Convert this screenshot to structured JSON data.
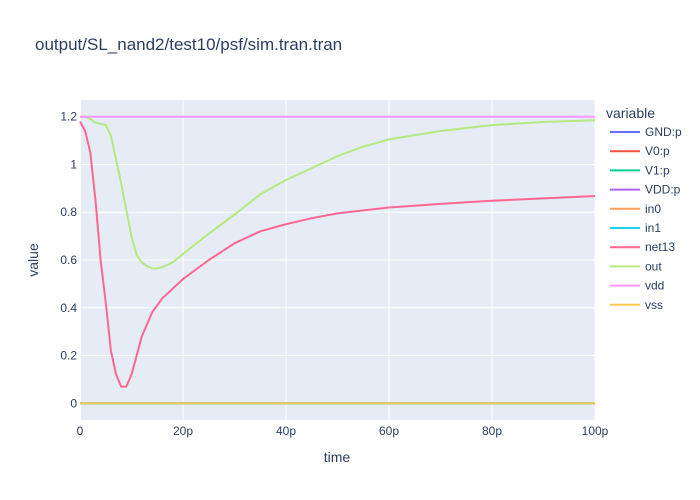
{
  "chart_data": {
    "type": "line",
    "title": "output/SL_nand2/test10/psf/sim.tran.tran",
    "xlabel": "time",
    "ylabel": "value",
    "xlim": [
      0,
      100
    ],
    "ylim": [
      -0.07,
      1.27
    ],
    "x_unit": "ps",
    "x_ticks": [
      0,
      20,
      40,
      60,
      80,
      100
    ],
    "x_tick_labels": [
      "0",
      "20p",
      "40p",
      "60p",
      "80p",
      "100p"
    ],
    "y_ticks": [
      0,
      0.2,
      0.4,
      0.6,
      0.8,
      1,
      1.2
    ],
    "y_tick_labels": [
      "0",
      "0.2",
      "0.4",
      "0.6",
      "0.8",
      "1",
      "1.2"
    ],
    "grid": true,
    "legend_title": "variable",
    "legend_position": "right",
    "background": "#e5ecf6",
    "series": [
      {
        "name": "GND:p",
        "color": "#636efa",
        "x": [
          0,
          100
        ],
        "values": [
          0,
          0
        ]
      },
      {
        "name": "V0:p",
        "color": "#ef553b",
        "x": [
          0,
          100
        ],
        "values": [
          0,
          0
        ]
      },
      {
        "name": "V1:p",
        "color": "#00cc96",
        "x": [
          0,
          100
        ],
        "values": [
          0,
          0
        ]
      },
      {
        "name": "VDD:p",
        "color": "#ab63fa",
        "x": [
          0,
          100
        ],
        "values": [
          0,
          0
        ]
      },
      {
        "name": "in0",
        "color": "#ffa15a",
        "x": [
          0,
          100
        ],
        "values": [
          0,
          0
        ]
      },
      {
        "name": "in1",
        "color": "#19d3f3",
        "x": [
          0,
          100
        ],
        "values": [
          0,
          0
        ]
      },
      {
        "name": "net13",
        "color": "#ff6692",
        "x": [
          0,
          1,
          2,
          3,
          4,
          5,
          6,
          7,
          8,
          9,
          10,
          12,
          14,
          16,
          18,
          20,
          25,
          30,
          35,
          40,
          45,
          50,
          60,
          70,
          80,
          90,
          100
        ],
        "values": [
          1.18,
          1.14,
          1.05,
          0.85,
          0.6,
          0.42,
          0.22,
          0.12,
          0.07,
          0.07,
          0.12,
          0.28,
          0.38,
          0.44,
          0.48,
          0.52,
          0.6,
          0.67,
          0.72,
          0.75,
          0.775,
          0.795,
          0.82,
          0.835,
          0.848,
          0.858,
          0.868
        ]
      },
      {
        "name": "out",
        "color": "#b6e880",
        "x": [
          0,
          1,
          2,
          3,
          4,
          5,
          6,
          7,
          8,
          9,
          10,
          11,
          12,
          13,
          14,
          15,
          16,
          18,
          20,
          25,
          30,
          35,
          40,
          45,
          50,
          55,
          60,
          70,
          80,
          90,
          100
        ],
        "values": [
          1.2,
          1.2,
          1.19,
          1.175,
          1.17,
          1.165,
          1.12,
          1.02,
          0.92,
          0.81,
          0.7,
          0.62,
          0.59,
          0.575,
          0.565,
          0.565,
          0.57,
          0.59,
          0.625,
          0.71,
          0.79,
          0.875,
          0.935,
          0.985,
          1.035,
          1.075,
          1.105,
          1.14,
          1.165,
          1.178,
          1.185
        ]
      },
      {
        "name": "vdd",
        "color": "#ff97ff",
        "x": [
          0,
          100
        ],
        "values": [
          1.2,
          1.2
        ]
      },
      {
        "name": "vss",
        "color": "#fecb52",
        "x": [
          0,
          100
        ],
        "values": [
          0,
          0
        ]
      }
    ]
  }
}
